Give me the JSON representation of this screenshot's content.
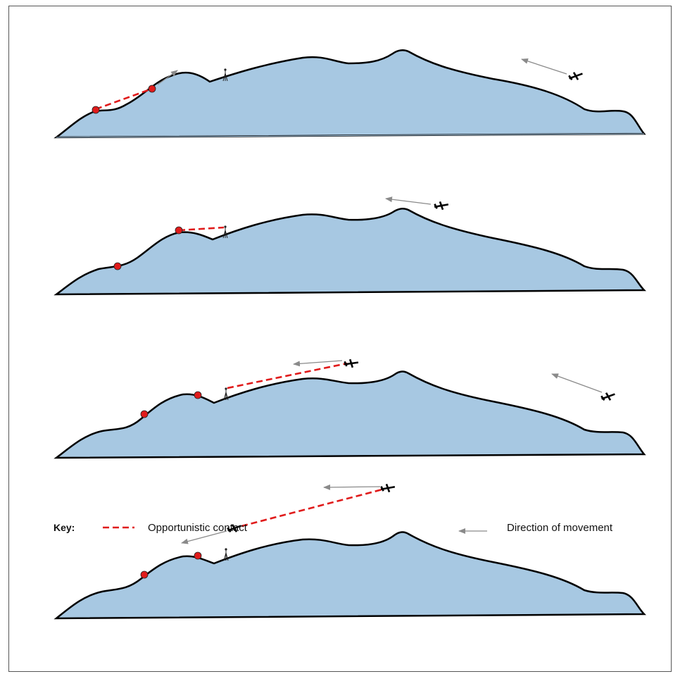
{
  "key": {
    "title": "Key:",
    "contact_label": "Opportunistic contact",
    "movement_label": "Direction of movement"
  },
  "colors": {
    "terrain_fill": "#a7c8e2",
    "terrain_stroke": "#000000",
    "contact_line": "#e01b1b",
    "person_marker": "#e01b1b",
    "movement_arrow": "#8a8a8a"
  },
  "icons": [
    "aircraft-icon",
    "ground-station-icon",
    "person-marker-icon",
    "movement-arrow-icon"
  ]
}
